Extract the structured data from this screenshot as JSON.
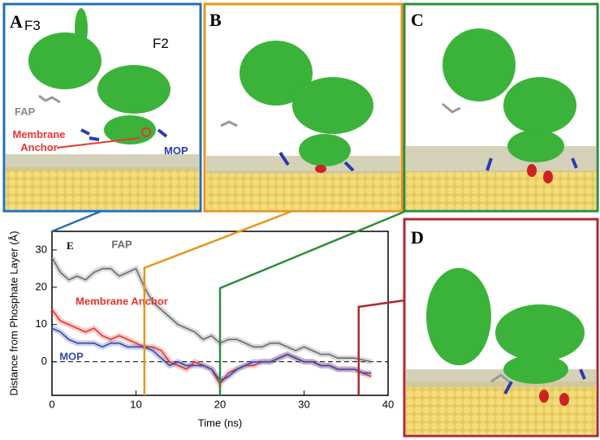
{
  "panels": [
    {
      "label": "A",
      "annotations": [
        "F3",
        "F2",
        "FAP",
        "Membrane Anchor",
        "MOP"
      ]
    },
    {
      "label": "B"
    },
    {
      "label": "C"
    },
    {
      "label": "D"
    }
  ],
  "chart_data": {
    "type": "line",
    "label": "E",
    "x_label": "Time (ns)",
    "y_label": "Distance from Phosphate Layer (Å)",
    "x": [
      0,
      1,
      2,
      3,
      4,
      5,
      6,
      7,
      8,
      9,
      10,
      11,
      12,
      13,
      14,
      15,
      16,
      17,
      18,
      19,
      20,
      21,
      22,
      23,
      24,
      25,
      26,
      27,
      28,
      29,
      30,
      31,
      32,
      33,
      34,
      35,
      36,
      37,
      38
    ],
    "series": [
      {
        "name": "FAP",
        "color": "#6b6b6b",
        "values": [
          28,
          24,
          22,
          23,
          22,
          24,
          25,
          25,
          23,
          24,
          25,
          20,
          16,
          14,
          12,
          10,
          9,
          8,
          6,
          7,
          5,
          6,
          6,
          5,
          4,
          4,
          5,
          5,
          4,
          3,
          4,
          3,
          2,
          2,
          1,
          1,
          1,
          0.5,
          0
        ]
      },
      {
        "name": "Membrane Anchor",
        "color": "#e8352a",
        "values": [
          14,
          11,
          10,
          9,
          8,
          9,
          7,
          6,
          7,
          6,
          5,
          4,
          4,
          3,
          0,
          -1,
          -2,
          0,
          -1,
          -2,
          -6,
          -3,
          -2,
          -1,
          -1,
          0,
          0,
          1,
          2,
          1,
          0,
          0,
          -1,
          -1,
          -2,
          -2,
          -2,
          -3,
          -4
        ]
      },
      {
        "name": "MOP",
        "color": "#3548b0",
        "values": [
          9,
          8,
          6,
          5,
          5,
          5,
          4,
          5,
          5,
          4,
          4,
          4,
          3,
          1,
          -1,
          0,
          -1,
          -1,
          -1,
          -2,
          -5,
          -4,
          -2,
          -1,
          0,
          0,
          0,
          1,
          2,
          1,
          0,
          0,
          -1,
          -1,
          -2,
          -2,
          -2,
          -3,
          -3
        ]
      }
    ],
    "xlim": [
      0,
      40
    ],
    "xticks": [
      0,
      10,
      20,
      30,
      40
    ],
    "ylim": [
      -9,
      35
    ],
    "yticks": [
      0,
      10,
      20,
      30
    ],
    "reference_line": 0,
    "snapshot_times": [
      0,
      11,
      20,
      36.5
    ],
    "snapshot_colors": [
      "#1f6fb5",
      "#e8961a",
      "#2e8b3a",
      "#b0282e"
    ]
  }
}
